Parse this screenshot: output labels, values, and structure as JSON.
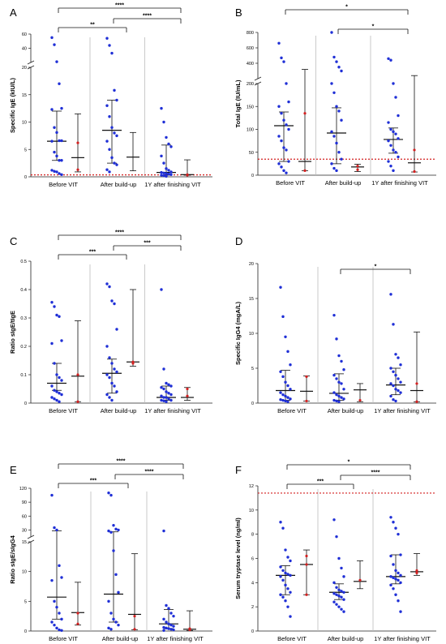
{
  "colors": {
    "blue": "#1f2fd6",
    "red": "#d42020",
    "axis": "#222222",
    "divider": "#bdbdbd",
    "ref": "#d42020"
  },
  "chart_data": [
    {
      "panel": "A",
      "type": "scatter",
      "broken_axis": true,
      "ylabel": "Specific IgE (kIU/L)",
      "categories": [
        "Before VIT",
        "After build-up",
        "1Y after finishing VIT"
      ],
      "y_low": {
        "range": [
          0,
          20
        ],
        "ticks": [
          0,
          5,
          10,
          15,
          20
        ]
      },
      "y_high": {
        "range": [
          20,
          60
        ],
        "ticks": [
          40,
          60
        ]
      },
      "reference_line": 0.35,
      "series": [
        {
          "color": "blue",
          "groups": [
            {
              "points": [
                55,
                45,
                21,
                17,
                12.5,
                12.3,
                9,
                8.1,
                6.6,
                6.6,
                6.5,
                4.5,
                3.8,
                3,
                3,
                1.2,
                1,
                0.9,
                0.6,
                0.4
              ],
              "median": 6.5,
              "q1": 3.0,
              "q3": 12.0
            },
            {
              "points": [
                54,
                44,
                33,
                15.8,
                14,
                13,
                11,
                9,
                8,
                7.5,
                6.5,
                5,
                3.5,
                2.5,
                2.2,
                1.3,
                0.9
              ],
              "median": 8.5,
              "q1": 2.5,
              "q3": 14.0
            },
            {
              "points": [
                12.5,
                10,
                7.2,
                6,
                5.5,
                3.8,
                2.5,
                1.5,
                1.2,
                0.9,
                0.8,
                0.7,
                0.6,
                0.5,
                0.4,
                0.3,
                0.2,
                0.1
              ],
              "median": 0.8,
              "q1": 0.3,
              "q3": 5.8
            }
          ]
        },
        {
          "color": "red",
          "groups": [
            {
              "points": [
                6.2,
                1.3
              ],
              "median": 3.5,
              "q1": 0.9,
              "q3": 11.5
            },
            {
              "points": [],
              "median": 3.6,
              "q1": 1.1,
              "q3": 8.1
            },
            {
              "points": [
                0.4,
                0.3
              ],
              "median": 0.4,
              "q1": 0.3,
              "q3": 3.1
            }
          ]
        }
      ],
      "significance": [
        {
          "groups": [
            1,
            2
          ],
          "label": "**"
        },
        {
          "groups": [
            2,
            3
          ],
          "label": "****"
        },
        {
          "groups": [
            1,
            3
          ],
          "label": "****"
        }
      ]
    },
    {
      "panel": "B",
      "type": "scatter",
      "broken_axis": true,
      "ylabel": "Total IgE (IU/mL)",
      "categories": [
        "Before VIT",
        "After build-up",
        "1Y after finishing VIT"
      ],
      "y_low": {
        "range": [
          0,
          200
        ],
        "ticks": [
          0,
          50,
          100,
          150,
          200
        ]
      },
      "y_high": {
        "range": [
          200,
          800
        ],
        "ticks": [
          200,
          400,
          600,
          800
        ]
      },
      "reference_line": 35,
      "series": [
        {
          "color": "blue",
          "groups": [
            {
              "points": [
                660,
                470,
                420,
                200,
                160,
                150,
                135,
                120,
                110,
                100,
                85,
                75,
                60,
                55,
                30,
                25,
                18,
                10,
                5
              ],
              "median": 108,
              "q1": 30,
              "q3": 138
            },
            {
              "points": [
                800,
                480,
                420,
                350,
                300,
                200,
                180,
                150,
                140,
                120,
                95,
                85,
                70,
                50,
                35,
                25,
                15,
                10
              ],
              "median": 92,
              "q1": 25,
              "q3": 147
            },
            {
              "points": [
                460,
                440,
                200,
                170,
                130,
                115,
                100,
                95,
                90,
                80,
                75,
                65,
                55,
                50,
                40,
                30,
                20,
                10
              ],
              "median": 78,
              "q1": 48,
              "q3": 103
            }
          ]
        },
        {
          "color": "red",
          "groups": [
            {
              "points": [
                135,
                10
              ],
              "median": 30,
              "q1": 10,
              "q3": 320
            },
            {
              "points": [
                20,
                12
              ],
              "median": 18,
              "q1": 8,
              "q3": 24
            },
            {
              "points": [
                55,
                8
              ],
              "median": 27,
              "q1": 7,
              "q3": 240
            }
          ]
        }
      ],
      "significance": [
        {
          "groups": [
            2,
            3
          ],
          "label": "*"
        },
        {
          "groups": [
            1,
            3
          ],
          "label": "*"
        }
      ]
    },
    {
      "panel": "C",
      "type": "scatter",
      "ylabel": "Ratio sIgE/tIgE",
      "categories": [
        "Before VIT",
        "After build-up",
        "1Y after finishing VIT"
      ],
      "ylim": [
        0,
        0.5
      ],
      "ticks": [
        0,
        0.1,
        0.2,
        0.3,
        0.4,
        0.5
      ],
      "series": [
        {
          "color": "blue",
          "groups": [
            {
              "points": [
                0.355,
                0.34,
                0.31,
                0.305,
                0.22,
                0.21,
                0.14,
                0.1,
                0.09,
                0.08,
                0.06,
                0.045,
                0.04,
                0.035,
                0.03,
                0.02,
                0.015,
                0.01,
                0.005
              ],
              "median": 0.07,
              "q1": 0.045,
              "q3": 0.14
            },
            {
              "points": [
                0.42,
                0.41,
                0.36,
                0.35,
                0.26,
                0.2,
                0.16,
                0.14,
                0.12,
                0.11,
                0.1,
                0.09,
                0.07,
                0.06,
                0.04,
                0.03,
                0.02,
                0.01
              ],
              "median": 0.105,
              "q1": 0.035,
              "q3": 0.155
            },
            {
              "points": [
                0.4,
                0.12,
                0.07,
                0.065,
                0.06,
                0.055,
                0.05,
                0.04,
                0.035,
                0.03,
                0.025,
                0.02,
                0.02,
                0.015,
                0.01,
                0.01,
                0.008,
                0.005
              ],
              "median": 0.02,
              "q1": 0.01,
              "q3": 0.06
            }
          ]
        },
        {
          "color": "red",
          "groups": [
            {
              "points": [
                0.1,
                0.005
              ],
              "median": 0.095,
              "q1": 0.005,
              "q3": 0.29
            },
            {
              "points": [
                0.145,
                0.14
              ],
              "median": 0.145,
              "q1": 0.13,
              "q3": 0.4
            },
            {
              "points": [
                0.05,
                0.025
              ],
              "median": 0.02,
              "q1": 0.01,
              "q3": 0.055
            }
          ]
        }
      ],
      "significance": [
        {
          "groups": [
            1,
            2
          ],
          "label": "***"
        },
        {
          "groups": [
            2,
            3
          ],
          "label": "***"
        },
        {
          "groups": [
            1,
            3
          ],
          "label": "****"
        }
      ]
    },
    {
      "panel": "D",
      "type": "scatter",
      "ylabel": "Specific IgG4 (mgA/L)",
      "categories": [
        "Before VIT",
        "After build-up",
        "1Y after finishing VIT"
      ],
      "ylim": [
        0,
        20
      ],
      "ticks": [
        0,
        5,
        10,
        15,
        20
      ],
      "series": [
        {
          "color": "blue",
          "groups": [
            {
              "points": [
                16.6,
                12.4,
                9.5,
                7.4,
                5.5,
                4.5,
                3.8,
                3,
                2.5,
                2,
                1.5,
                1.2,
                1,
                0.8,
                0.6,
                0.5,
                0.4,
                0.3,
                0.2
              ],
              "median": 1.8,
              "q1": 0.4,
              "q3": 4.7
            },
            {
              "points": [
                12.6,
                9.2,
                6.8,
                6,
                4.8,
                4,
                3.5,
                3,
                2.8,
                2,
                1.5,
                1.2,
                1,
                0.8,
                0.6,
                0.4,
                0.3,
                0.2
              ],
              "median": 1.4,
              "q1": 0.4,
              "q3": 4.2
            },
            {
              "points": [
                15.6,
                11.3,
                7,
                6.5,
                5.5,
                5,
                4.5,
                4,
                3.5,
                3,
                2.8,
                2.5,
                2,
                1.8,
                1.5,
                1,
                0.5,
                0.3
              ],
              "median": 2.6,
              "q1": 1.2,
              "q3": 5.0
            }
          ]
        },
        {
          "color": "red",
          "groups": [
            {
              "points": [
                3.8,
                0.3
              ],
              "median": 1.7,
              "q1": 0.3,
              "q3": 3.9
            },
            {
              "points": [
                0.4
              ],
              "median": 1.9,
              "q1": 0.2,
              "q3": 2.8
            },
            {
              "points": [
                2.8,
                0.2
              ],
              "median": 1.8,
              "q1": 0.2,
              "q3": 10.2
            }
          ]
        }
      ],
      "significance": [
        {
          "groups": [
            2,
            3
          ],
          "label": "*"
        }
      ]
    },
    {
      "panel": "E",
      "type": "scatter",
      "broken_axis": true,
      "ylabel": "Ratio sIgE/sIgG4",
      "categories": [
        "Before VIT",
        "After build-up",
        "1Y after finishing VIT"
      ],
      "y_low": {
        "range": [
          0,
          15
        ],
        "ticks": [
          0,
          5,
          10,
          15
        ]
      },
      "y_high": {
        "range": [
          15,
          120
        ],
        "ticks": [
          30,
          60,
          90,
          120
        ]
      },
      "series": [
        {
          "color": "blue",
          "groups": [
            {
              "points": [
                105,
                35,
                30,
                11,
                9,
                8.5,
                5,
                4,
                3,
                2,
                1.5,
                1,
                0.5,
                0.2,
                0.1
              ],
              "median": 5.7,
              "q1": 2.0,
              "q3": 28
            },
            {
              "points": [
                110,
                105,
                40,
                32,
                30,
                28,
                25,
                13.5,
                9.5,
                6.5,
                5,
                3,
                2,
                1.5,
                1,
                0.5,
                0.3
              ],
              "median": 6.2,
              "q1": 1.5,
              "q3": 26
            },
            {
              "points": [
                28,
                4.3,
                3.8,
                3,
                2.5,
                2,
                1.5,
                1.2,
                1,
                0.8,
                0.6,
                0.5,
                0.4,
                0.3,
                0.2,
                0.1
              ],
              "median": 1.2,
              "q1": 0.4,
              "q3": 3.6
            }
          ]
        },
        {
          "color": "red",
          "groups": [
            {
              "points": [
                3,
                1.2
              ],
              "median": 3.1,
              "q1": 1.0,
              "q3": 8.2
            },
            {
              "points": [
                2.5,
                0.3
              ],
              "median": 2.8,
              "q1": 0.2,
              "q3": 13.0
            },
            {
              "points": [
                0.4,
                0.2
              ],
              "median": 0.3,
              "q1": 0.1,
              "q3": 3.4
            }
          ]
        }
      ],
      "significance": [
        {
          "groups": [
            1,
            2
          ],
          "label": "***"
        },
        {
          "groups": [
            2,
            3
          ],
          "label": "****"
        },
        {
          "groups": [
            1,
            3
          ],
          "label": "****"
        }
      ]
    },
    {
      "panel": "F",
      "type": "scatter",
      "ylabel": "Serum tryptase level (ng/ml)",
      "categories": [
        "Before VIT",
        "After build-up",
        "1Y after finishing VIT"
      ],
      "ylim": [
        0,
        12
      ],
      "ticks": [
        0,
        2,
        4,
        6,
        8,
        10,
        12
      ],
      "reference_line": 11.4,
      "series": [
        {
          "color": "blue",
          "groups": [
            {
              "points": [
                9,
                8.5,
                6.7,
                6.1,
                5.8,
                5.3,
                5,
                4.8,
                4.7,
                4.6,
                4.5,
                4.2,
                3.8,
                3.5,
                3.2,
                3,
                2.8,
                2.5,
                2,
                1.2
              ],
              "median": 4.6,
              "q1": 3.0,
              "q3": 5.4
            },
            {
              "points": [
                9.2,
                7.8,
                6,
                5.2,
                4.5,
                4,
                3.6,
                3.4,
                3.3,
                3.2,
                3.1,
                3,
                2.9,
                2.8,
                2.6,
                2.4,
                2.2,
                2,
                1.8,
                1.6
              ],
              "median": 3.2,
              "q1": 2.6,
              "q3": 3.9
            },
            {
              "points": [
                9.4,
                9,
                8.5,
                8,
                6.3,
                6.2,
                5.5,
                5,
                4.8,
                4.6,
                4.5,
                4.4,
                4.3,
                4.2,
                4,
                3.8,
                3.5,
                3,
                2.5,
                1.6
              ],
              "median": 4.5,
              "q1": 3.9,
              "q3": 6.3
            }
          ]
        },
        {
          "color": "red",
          "groups": [
            {
              "points": [
                6.2,
                5.5,
                3
              ],
              "median": 5.5,
              "q1": 3.0,
              "q3": 6.7
            },
            {
              "points": [
                4.2
              ],
              "median": 4.1,
              "q1": 3.5,
              "q3": 5.8
            },
            {
              "points": [
                5,
                4.8
              ],
              "median": 4.9,
              "q1": 4.6,
              "q3": 6.4
            }
          ]
        }
      ],
      "significance": [
        {
          "groups": [
            1,
            2
          ],
          "label": "***"
        },
        {
          "groups": [
            2,
            3
          ],
          "label": "****"
        },
        {
          "groups": [
            1,
            3
          ],
          "label": "*"
        }
      ]
    }
  ]
}
